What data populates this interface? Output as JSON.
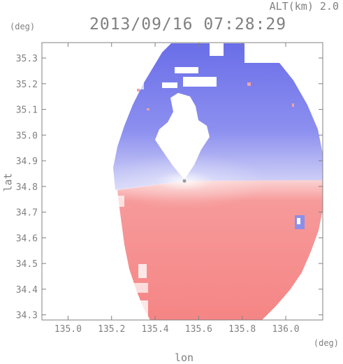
{
  "header": {
    "altitude_label": "ALT(km)  2.0",
    "timestamp": "2013/09/16 07:28:29"
  },
  "chart_data": {
    "type": "heatmap",
    "title": "2013/09/16 07:28:29",
    "xlabel": "lon",
    "ylabel": "lat",
    "x_unit": "(deg)",
    "y_unit": "(deg)",
    "xlim": [
      134.88,
      136.17
    ],
    "ylim": [
      34.28,
      35.36
    ],
    "x_ticks": [
      135.0,
      135.2,
      135.4,
      135.6,
      135.8,
      136.0
    ],
    "x_tick_labels": [
      "135.0",
      "135.2",
      "135.4",
      "135.6",
      "135.8",
      "136.0"
    ],
    "y_ticks": [
      34.3,
      34.4,
      34.5,
      34.6,
      34.7,
      34.8,
      34.9,
      35.0,
      35.1,
      35.2,
      35.3
    ],
    "y_tick_labels": [
      "34.3",
      "34.4",
      "34.5",
      "34.6",
      "34.7",
      "34.8",
      "34.9",
      "35.0",
      "35.1",
      "35.2",
      "35.3"
    ],
    "radar_center": [
      135.52,
      34.82
    ],
    "colors": {
      "approaching": "#6f73ee",
      "receding": "#f58787",
      "neutral": "#ffffff"
    },
    "grid": false
  }
}
